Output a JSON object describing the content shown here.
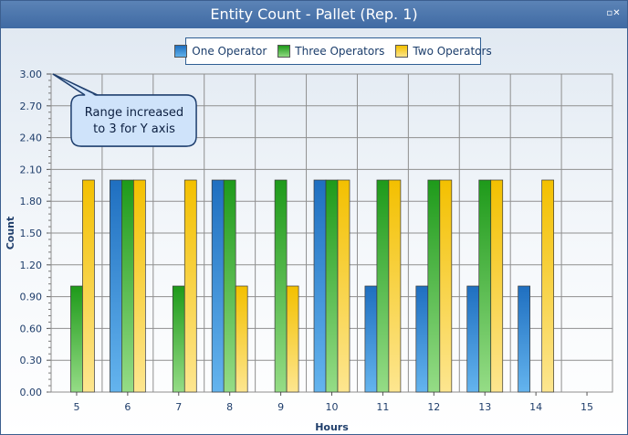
{
  "window": {
    "title": "Entity Count - Pallet (Rep. 1)",
    "control_glyph": "▫✕"
  },
  "chart_data": {
    "type": "bar",
    "title": "Entity Count - Pallet (Rep. 1)",
    "xlabel": "Hours",
    "ylabel": "Count",
    "categories": [
      "5",
      "6",
      "7",
      "8",
      "9",
      "10",
      "11",
      "12",
      "13",
      "14",
      "15"
    ],
    "ylim": [
      0,
      3
    ],
    "yticks": [
      "0.00",
      "0.30",
      "0.60",
      "0.90",
      "1.20",
      "1.50",
      "1.80",
      "2.10",
      "2.40",
      "2.70",
      "3.00"
    ],
    "grid": true,
    "legend_position": "top-center",
    "series": [
      {
        "name": "One Operator",
        "color": "#2e86d6",
        "values": [
          null,
          2,
          null,
          2,
          null,
          2,
          1,
          1,
          1,
          1,
          null
        ]
      },
      {
        "name": "Three Operators",
        "color": "#2ea82a",
        "values": [
          1,
          2,
          1,
          2,
          2,
          2,
          2,
          2,
          2,
          null,
          null
        ]
      },
      {
        "name": "Two Operators",
        "color": "#f5c400",
        "values": [
          2,
          2,
          2,
          1,
          1,
          2,
          2,
          2,
          2,
          2,
          null
        ]
      }
    ],
    "annotation": {
      "text_lines": [
        "Range increased",
        "to 3 for Y axis"
      ]
    }
  }
}
